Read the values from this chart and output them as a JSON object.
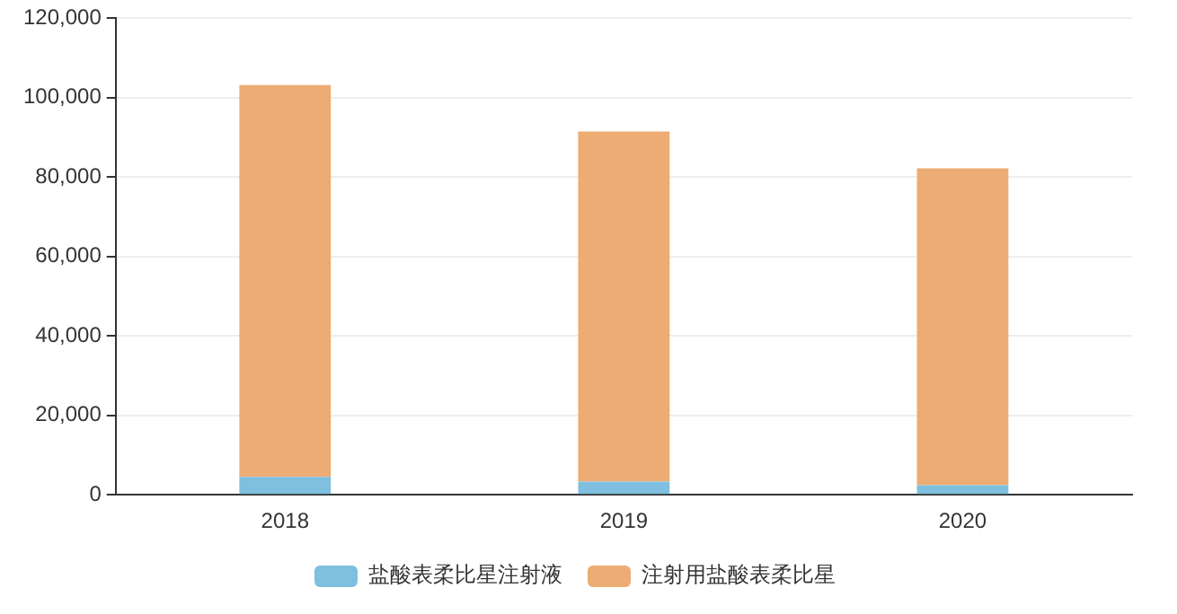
{
  "chart_data": {
    "type": "bar",
    "stacked": true,
    "categories": [
      "2018",
      "2019",
      "2020"
    ],
    "series": [
      {
        "name": "盐酸表柔比星注射液",
        "color": "#7fbfdf",
        "values": [
          4500,
          3300,
          2400
        ]
      },
      {
        "name": "注射用盐酸表柔比星",
        "color": "#edac73",
        "values": [
          98700,
          88200,
          79800
        ]
      }
    ],
    "ylim": [
      0,
      120000
    ],
    "yticks": [
      0,
      {
        "value": 20000,
        "label": "20,000"
      },
      {
        "value": 40000,
        "label": "40,000"
      },
      {
        "value": 60000,
        "label": "60,000"
      },
      {
        "value": 80000,
        "label": "80,000"
      },
      {
        "value": 100000,
        "label": "100,000"
      },
      {
        "value": 120000,
        "label": "120,000"
      }
    ],
    "grid": "y",
    "legend": "bottom"
  }
}
